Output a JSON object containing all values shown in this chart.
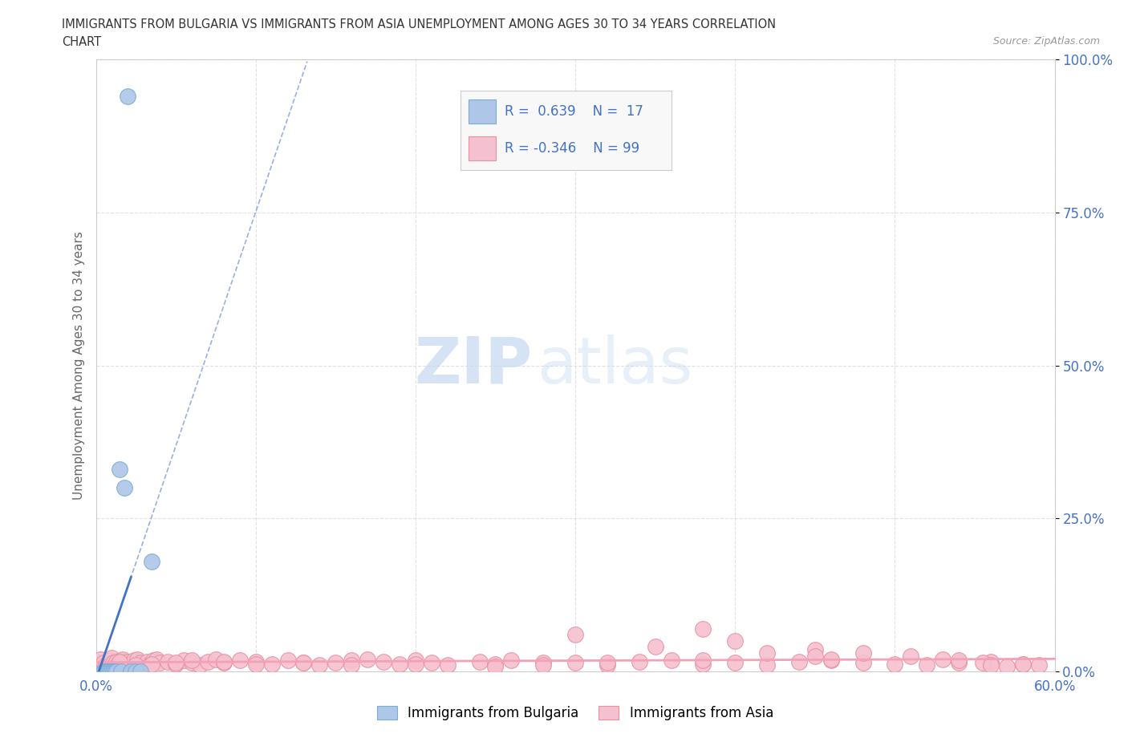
{
  "title_line1": "IMMIGRANTS FROM BULGARIA VS IMMIGRANTS FROM ASIA UNEMPLOYMENT AMONG AGES 30 TO 34 YEARS CORRELATION",
  "title_line2": "CHART",
  "source_text": "Source: ZipAtlas.com",
  "ylabel": "Unemployment Among Ages 30 to 34 years",
  "xlim": [
    0.0,
    0.6
  ],
  "ylim": [
    0.0,
    1.0
  ],
  "ytick_values": [
    0.0,
    0.25,
    0.5,
    0.75,
    1.0
  ],
  "xtick_values": [
    0.0,
    0.1,
    0.2,
    0.3,
    0.4,
    0.5,
    0.6
  ],
  "watermark_top": "ZIP",
  "watermark_bot": "atlas",
  "bulgaria_color": "#aec6e8",
  "bulgaria_edge": "#7aadd4",
  "asia_color": "#f5c0d0",
  "asia_edge": "#e8919f",
  "trendline_bulgaria_color": "#4472c4",
  "trendline_asia_color": "#f5a0b5",
  "legend_color": "#4472c4",
  "grid_color": "#e0e0e0",
  "background_color": "#ffffff",
  "bulgaria_x": [
    0.005,
    0.006,
    0.007,
    0.008,
    0.009,
    0.01,
    0.011,
    0.012,
    0.013,
    0.015,
    0.016,
    0.018,
    0.02,
    0.022,
    0.025,
    0.028,
    0.035
  ],
  "bulgaria_y": [
    0.0,
    0.0,
    0.0,
    0.0,
    0.0,
    0.0,
    0.0,
    0.0,
    0.0,
    0.33,
    0.0,
    0.3,
    0.94,
    0.0,
    0.0,
    0.0,
    0.18
  ],
  "asia_x": [
    0.003,
    0.005,
    0.006,
    0.007,
    0.008,
    0.009,
    0.01,
    0.011,
    0.012,
    0.013,
    0.014,
    0.015,
    0.016,
    0.017,
    0.018,
    0.019,
    0.02,
    0.022,
    0.024,
    0.026,
    0.028,
    0.03,
    0.032,
    0.034,
    0.036,
    0.038,
    0.04,
    0.045,
    0.05,
    0.055,
    0.06,
    0.065,
    0.07,
    0.075,
    0.08,
    0.09,
    0.1,
    0.11,
    0.12,
    0.13,
    0.14,
    0.15,
    0.16,
    0.17,
    0.18,
    0.19,
    0.2,
    0.21,
    0.22,
    0.24,
    0.25,
    0.26,
    0.28,
    0.3,
    0.32,
    0.34,
    0.36,
    0.38,
    0.4,
    0.42,
    0.44,
    0.46,
    0.48,
    0.5,
    0.52,
    0.54,
    0.56,
    0.58,
    0.3,
    0.35,
    0.38,
    0.4,
    0.45,
    0.48,
    0.51,
    0.53,
    0.54,
    0.555,
    0.56,
    0.57,
    0.58,
    0.59,
    0.42,
    0.45,
    0.46,
    0.38,
    0.32,
    0.28,
    0.25,
    0.2,
    0.16,
    0.13,
    0.1,
    0.08,
    0.06,
    0.05,
    0.035,
    0.025,
    0.015
  ],
  "asia_y": [
    0.02,
    0.015,
    0.008,
    0.012,
    0.01,
    0.018,
    0.022,
    0.015,
    0.01,
    0.016,
    0.012,
    0.008,
    0.018,
    0.02,
    0.014,
    0.01,
    0.016,
    0.012,
    0.018,
    0.02,
    0.015,
    0.01,
    0.016,
    0.012,
    0.018,
    0.02,
    0.014,
    0.016,
    0.012,
    0.018,
    0.015,
    0.01,
    0.016,
    0.02,
    0.014,
    0.018,
    0.016,
    0.012,
    0.018,
    0.015,
    0.01,
    0.014,
    0.018,
    0.02,
    0.016,
    0.012,
    0.018,
    0.015,
    0.01,
    0.016,
    0.012,
    0.018,
    0.014,
    0.015,
    0.01,
    0.016,
    0.018,
    0.012,
    0.015,
    0.01,
    0.016,
    0.018,
    0.014,
    0.012,
    0.01,
    0.015,
    0.016,
    0.012,
    0.06,
    0.04,
    0.07,
    0.05,
    0.035,
    0.03,
    0.025,
    0.02,
    0.018,
    0.015,
    0.01,
    0.008,
    0.012,
    0.01,
    0.03,
    0.025,
    0.02,
    0.018,
    0.015,
    0.01,
    0.008,
    0.012,
    0.01,
    0.015,
    0.012,
    0.016,
    0.018,
    0.014,
    0.012,
    0.01,
    0.016
  ]
}
